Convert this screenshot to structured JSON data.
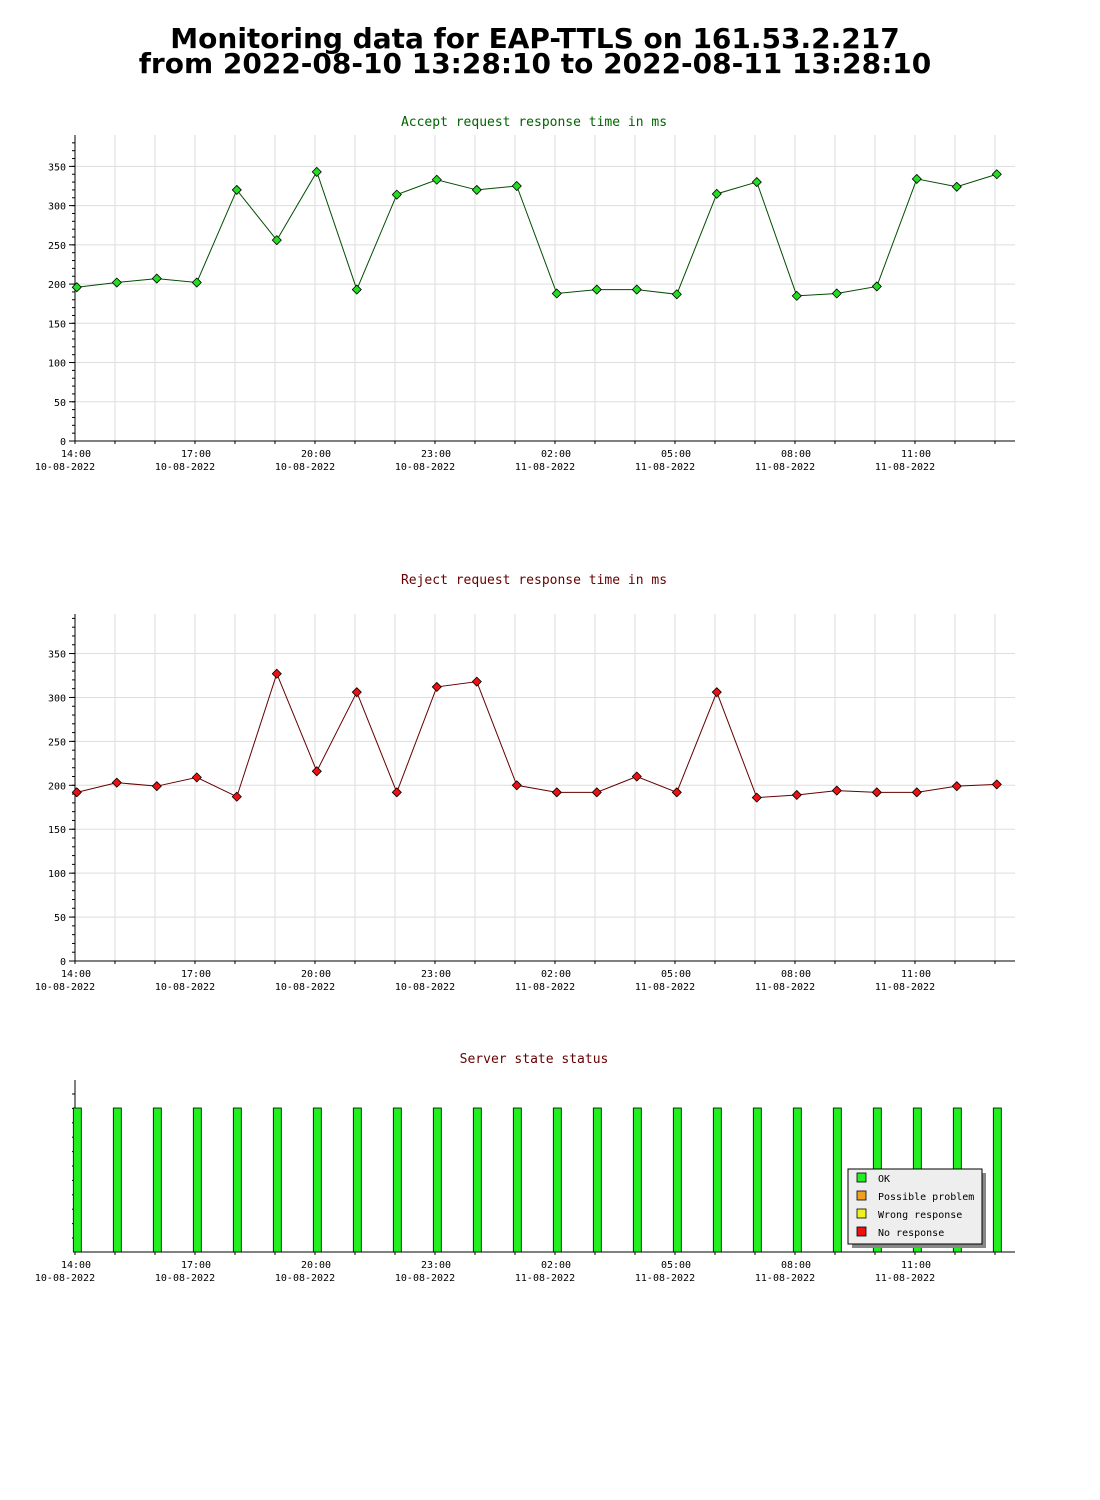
{
  "page": {
    "title_line1": "Monitoring data for EAP-TTLS on 161.53.2.217",
    "title_line2": "from 2022-08-10 13:28:10 to 2022-08-11 13:28:10"
  },
  "colors": {
    "accept_title": "#006400",
    "reject_title": "#660000",
    "status_title": "#660000",
    "accept_point": "#22dd22",
    "accept_line": "#004d00",
    "reject_point": "#ee1111",
    "reject_line": "#660000",
    "ok": "#22ee22",
    "possible_problem": "#f0a020",
    "wrong_response": "#f0f020",
    "no_response": "#ee1111"
  },
  "chart_data": [
    {
      "type": "line",
      "title": "Accept request response time in ms",
      "ylim": [
        0,
        390
      ],
      "yticks": [
        0,
        50,
        100,
        150,
        200,
        250,
        300,
        350
      ],
      "x_tick_labels": [
        {
          "time": "14:00",
          "date": "10-08-2022"
        },
        {
          "time": "17:00",
          "date": "10-08-2022"
        },
        {
          "time": "20:00",
          "date": "10-08-2022"
        },
        {
          "time": "23:00",
          "date": "10-08-2022"
        },
        {
          "time": "02:00",
          "date": "11-08-2022"
        },
        {
          "time": "05:00",
          "date": "11-08-2022"
        },
        {
          "time": "08:00",
          "date": "11-08-2022"
        },
        {
          "time": "11:00",
          "date": "11-08-2022"
        }
      ],
      "grid": true,
      "x_hours": [
        13.97,
        14.97,
        15.97,
        16.97,
        17.97,
        18.97,
        19.97,
        20.97,
        21.97,
        22.97,
        23.97,
        24.97,
        25.97,
        26.97,
        27.97,
        28.97,
        29.97,
        30.97,
        31.97,
        32.97,
        33.97,
        34.97,
        35.97,
        36.97
      ],
      "values": [
        196,
        202,
        207,
        202,
        320,
        256,
        343,
        193,
        314,
        333,
        320,
        325,
        188,
        193,
        193,
        187,
        315,
        330,
        185,
        188,
        197,
        334,
        324,
        340
      ]
    },
    {
      "type": "line",
      "title": "Reject request response time in ms",
      "ylim": [
        0,
        395
      ],
      "yticks": [
        0,
        50,
        100,
        150,
        200,
        250,
        300,
        350
      ],
      "x_tick_labels": [
        {
          "time": "14:00",
          "date": "10-08-2022"
        },
        {
          "time": "17:00",
          "date": "10-08-2022"
        },
        {
          "time": "20:00",
          "date": "10-08-2022"
        },
        {
          "time": "23:00",
          "date": "10-08-2022"
        },
        {
          "time": "02:00",
          "date": "11-08-2022"
        },
        {
          "time": "05:00",
          "date": "11-08-2022"
        },
        {
          "time": "08:00",
          "date": "11-08-2022"
        },
        {
          "time": "11:00",
          "date": "11-08-2022"
        }
      ],
      "grid": true,
      "x_hours": [
        13.97,
        14.97,
        15.97,
        16.97,
        17.97,
        18.97,
        19.97,
        20.97,
        21.97,
        22.97,
        23.97,
        24.97,
        25.97,
        26.97,
        27.97,
        28.97,
        29.97,
        30.97,
        31.97,
        32.97,
        33.97,
        34.97,
        35.97,
        36.97
      ],
      "values": [
        192,
        203,
        199,
        209,
        187,
        327,
        216,
        306,
        192,
        312,
        318,
        200,
        192,
        192,
        210,
        192,
        306,
        186,
        189,
        194,
        192,
        192,
        199,
        201
      ]
    },
    {
      "type": "bar",
      "title": "Server state status",
      "x_tick_labels": [
        {
          "time": "14:00",
          "date": "10-08-2022"
        },
        {
          "time": "17:00",
          "date": "10-08-2022"
        },
        {
          "time": "20:00",
          "date": "10-08-2022"
        },
        {
          "time": "23:00",
          "date": "10-08-2022"
        },
        {
          "time": "02:00",
          "date": "11-08-2022"
        },
        {
          "time": "05:00",
          "date": "11-08-2022"
        },
        {
          "time": "08:00",
          "date": "11-08-2022"
        },
        {
          "time": "11:00",
          "date": "11-08-2022"
        }
      ],
      "x_hours": [
        13.97,
        14.97,
        15.97,
        16.97,
        17.97,
        18.97,
        19.97,
        20.97,
        21.97,
        22.97,
        23.97,
        24.97,
        25.97,
        26.97,
        27.97,
        28.97,
        29.97,
        30.97,
        31.97,
        32.97,
        33.97,
        34.97,
        35.97,
        36.97
      ],
      "states": [
        "OK",
        "OK",
        "OK",
        "OK",
        "OK",
        "OK",
        "OK",
        "OK",
        "OK",
        "OK",
        "OK",
        "OK",
        "OK",
        "OK",
        "OK",
        "OK",
        "OK",
        "OK",
        "OK",
        "OK",
        "OK",
        "OK",
        "OK",
        "OK"
      ],
      "legend": [
        "OK",
        "Possible problem",
        "Wrong response",
        "No response"
      ],
      "legend_position": "bottom-right"
    }
  ]
}
